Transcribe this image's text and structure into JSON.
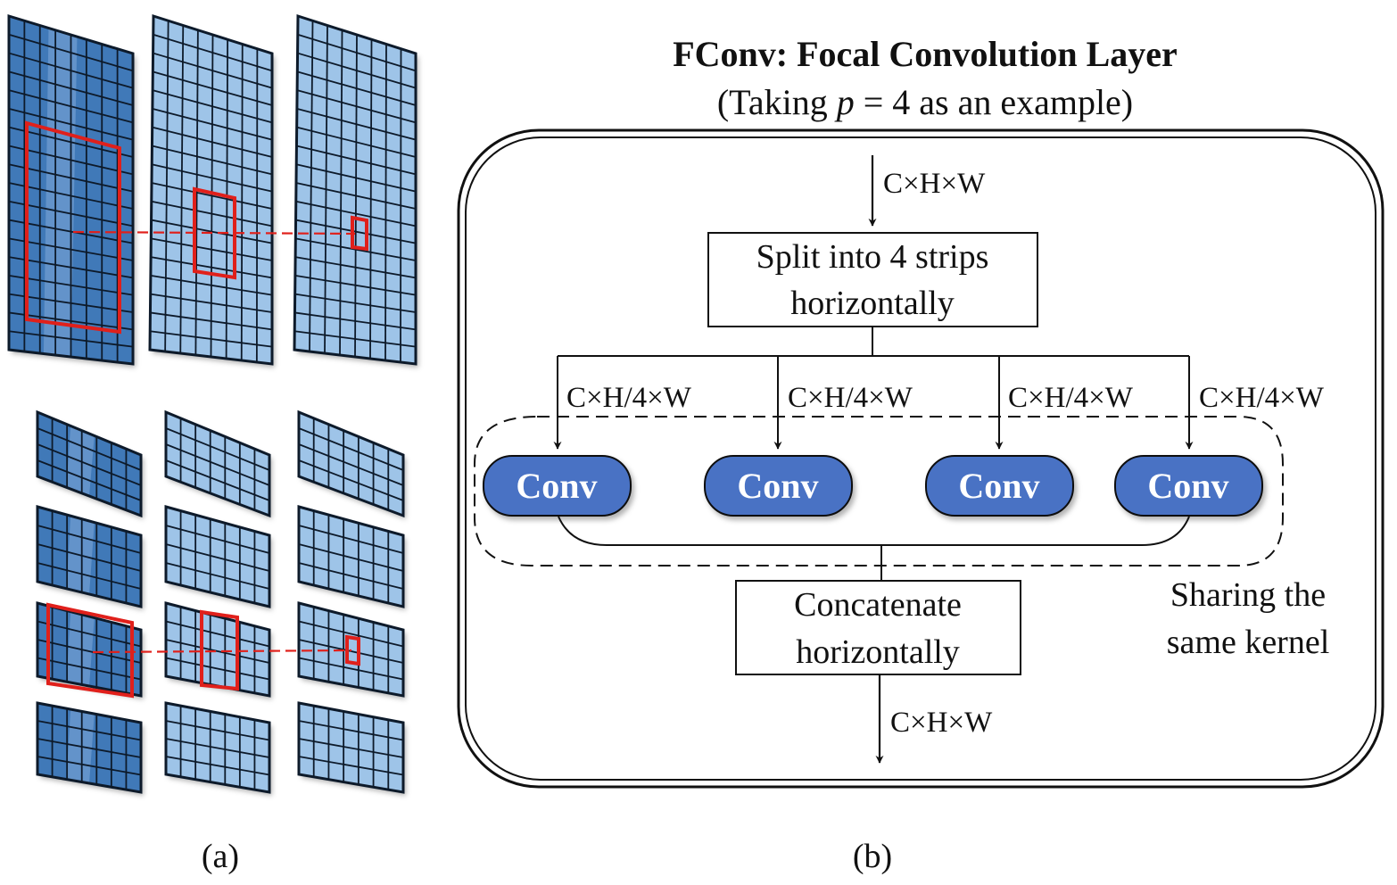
{
  "panel_a": {
    "caption": "(a)"
  },
  "panel_b": {
    "caption": "(b)",
    "title": "FConv: Focal Convolution Layer",
    "subtitle_prefix": "(Taking ",
    "subtitle_var": "p",
    "subtitle_suffix": " = 4 as an example)",
    "input_dims": "C×H×W",
    "split_box": {
      "line1": "Split into 4 strips",
      "line2": "horizontally"
    },
    "branch_dims": [
      "C×H/4×W",
      "C×H/4×W",
      "C×H/4×W",
      "C×H/4×W"
    ],
    "conv_labels": [
      "Conv",
      "Conv",
      "Conv",
      "Conv"
    ],
    "concat_box": {
      "line1": "Concatenate",
      "line2": "horizontally"
    },
    "sharing_note": {
      "line1": "Sharing the",
      "line2": "same kernel"
    },
    "output_dims": "C×H×W"
  },
  "colors": {
    "conv_fill": "#4a72c4",
    "grid_dark": "#3f79b8",
    "grid_light": "#9ec4e8",
    "highlight": "#e0201b",
    "stroke": "#111111"
  }
}
